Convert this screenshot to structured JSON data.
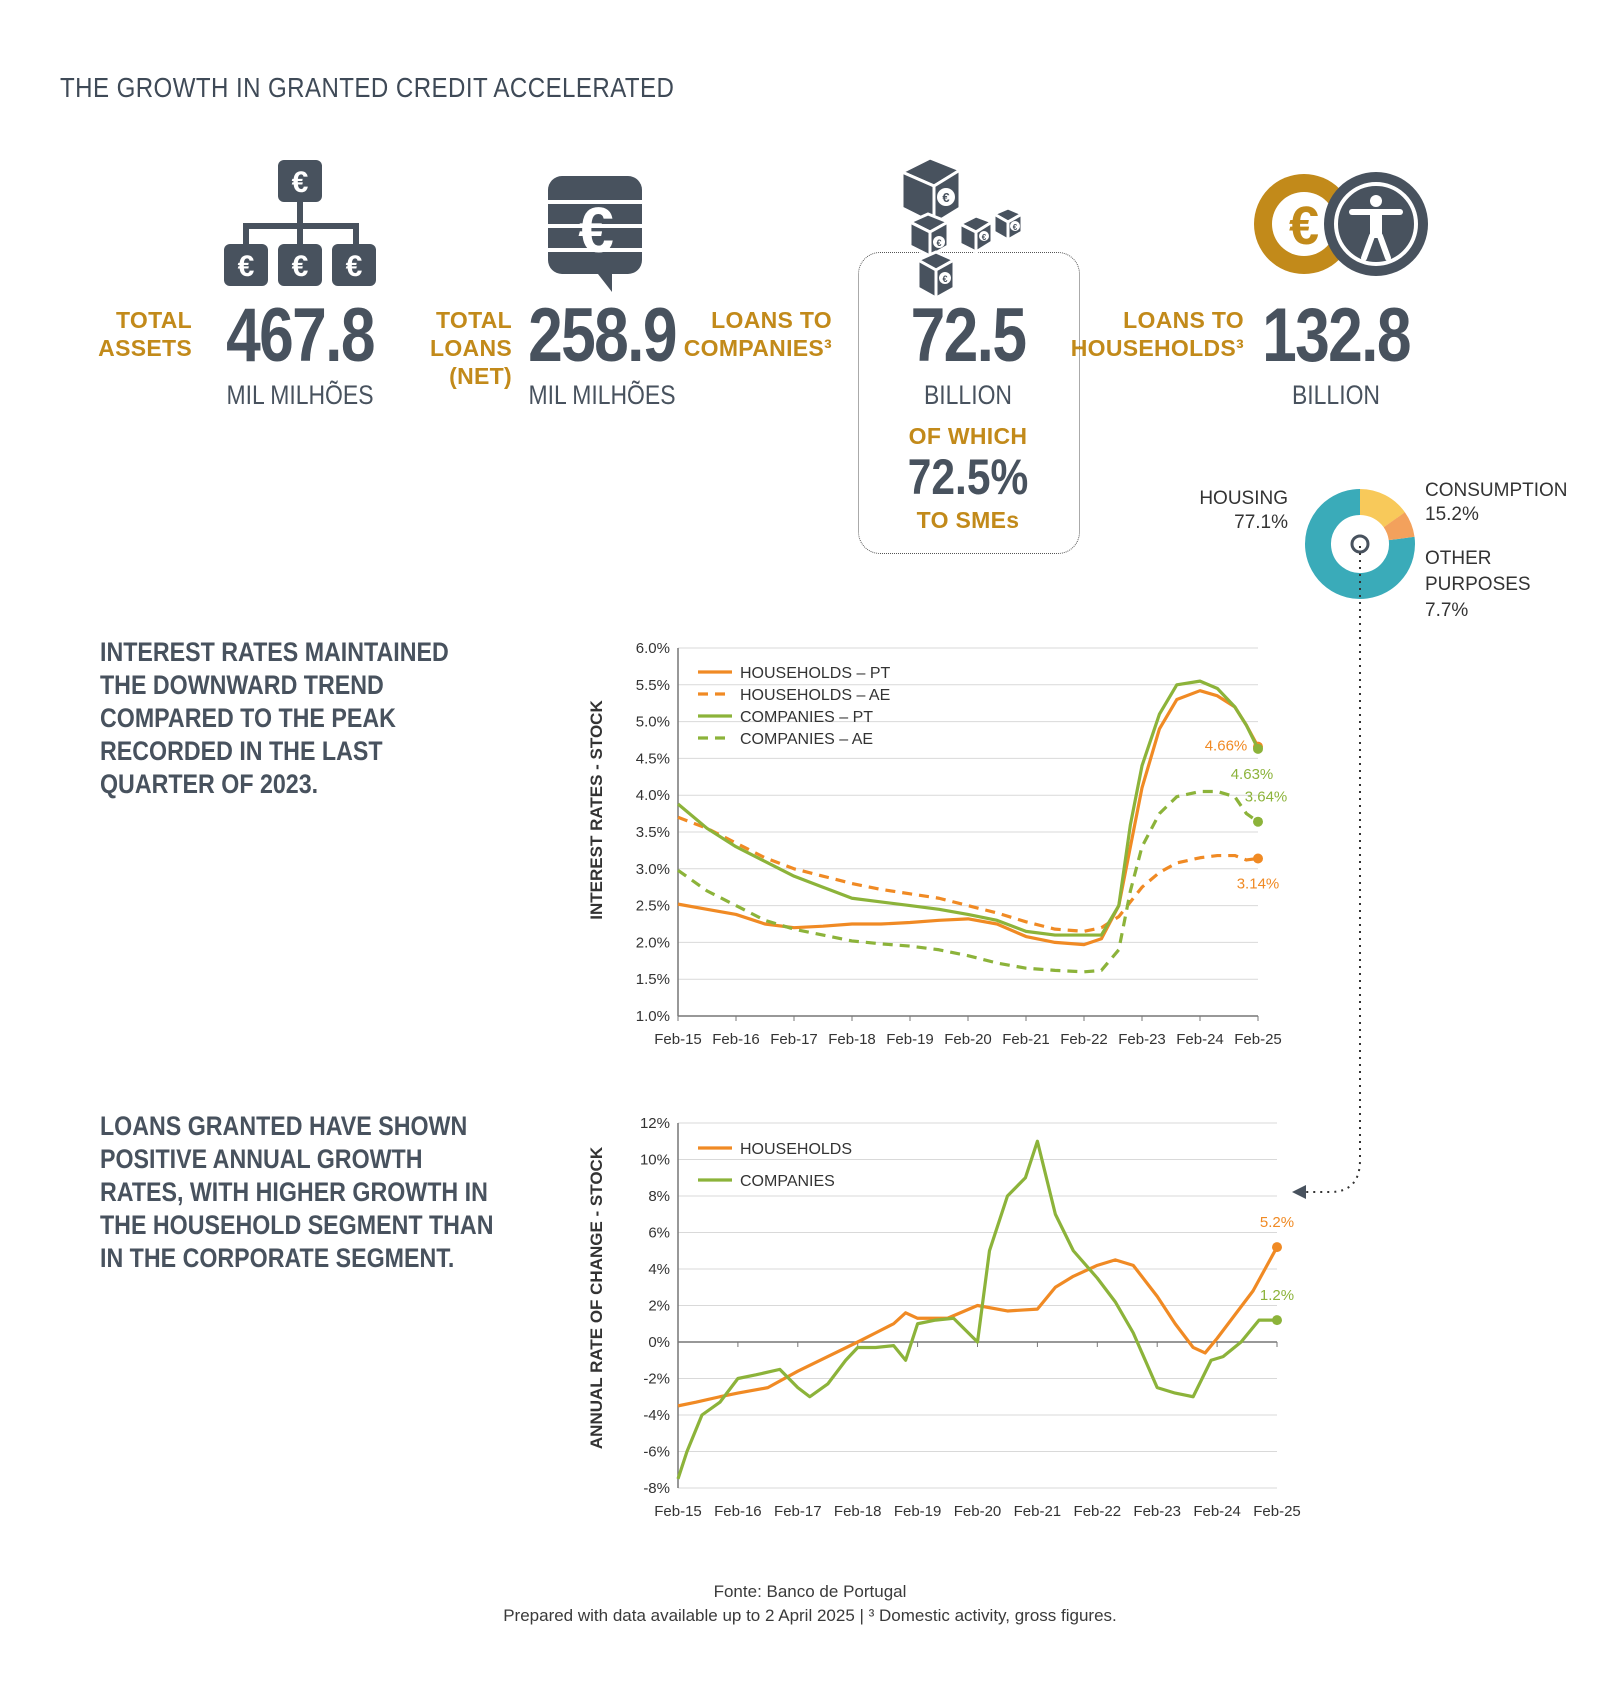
{
  "title": "THE GROWTH IN GRANTED CREDIT ACCELERATED",
  "kpis": [
    {
      "label": [
        "TOTAL",
        "ASSETS"
      ],
      "value": "467.8",
      "unit": "MIL MILHÕES",
      "icon": "euro-hierarchy-icon"
    },
    {
      "label": [
        "TOTAL",
        "LOANS",
        "(NET)"
      ],
      "value": "258.9",
      "unit": "MIL MILHÕES",
      "icon": "euro-chat-bubble-icon"
    },
    {
      "label": [
        "LOANS TO",
        "COMPANIES³"
      ],
      "value": "72.5",
      "unit": "BILLION",
      "icon": "euro-cubes-icon",
      "sub_label": "OF WHICH",
      "sub_value": "72.5%",
      "sub_tail": "TO SMEs"
    },
    {
      "label": [
        "LOANS TO",
        "HOUSEHOLDS³"
      ],
      "value": "132.8",
      "unit": "BILLION",
      "icon": "euro-person-icon"
    }
  ],
  "headings": {
    "rates": "INTEREST RATES MAINTAINED THE DOWNWARD TREND COMPARED TO THE PEAK RECORDED IN THE LAST QUARTER OF 2023.",
    "growth": "LOANS GRANTED HAVE SHOWN POSITIVE ANNUAL GROWTH RATES, WITH HIGHER GROWTH IN THE HOUSEHOLD SEGMENT THAN IN THE CORPORATE SEGMENT."
  },
  "footer": {
    "source": "Fonte: Banco de Portugal",
    "note": "Prepared with data available up to 2 April 2025 |  ³ Domestic activity, gross figures."
  },
  "colors": {
    "orange": "#f08a24",
    "green": "#8cb33a",
    "teal": "#3aabb9",
    "yellow": "#f8c95a",
    "peach": "#f3a15c",
    "gold": "#c28a1a",
    "dark": "#48525e"
  },
  "chart_data": [
    {
      "type": "pie",
      "title": "",
      "slices": [
        {
          "label": "HOUSING",
          "value": 77.1,
          "display": "77.1%"
        },
        {
          "label": "CONSUMPTION",
          "value": 15.2,
          "display": "15.2%"
        },
        {
          "label": "OTHER PURPOSES",
          "value": 7.7,
          "display": "7.7%"
        }
      ]
    },
    {
      "type": "line",
      "title": "",
      "ylabel": "INTEREST RATES - STOCK",
      "xlabel": "",
      "ylim": [
        1.0,
        6.0
      ],
      "yticks": [
        "1.0%",
        "1.5%",
        "2.0%",
        "2.5%",
        "3.0%",
        "3.5%",
        "4.0%",
        "4.5%",
        "5.0%",
        "5.5%",
        "6.0%"
      ],
      "xticks": [
        "Feb-15",
        "Feb-16",
        "Feb-17",
        "Feb-18",
        "Feb-19",
        "Feb-20",
        "Feb-21",
        "Feb-22",
        "Feb-23",
        "Feb-24",
        "Feb-25"
      ],
      "grid": true,
      "legend": "top-left",
      "series": [
        {
          "name": "HOUSEHOLDS – PT",
          "color": "orange",
          "dash": false,
          "x": [
            0,
            0.5,
            1,
            1.5,
            2,
            2.5,
            3,
            3.5,
            4,
            4.5,
            5,
            5.5,
            6,
            6.5,
            7,
            7.3,
            7.6,
            7.8,
            8,
            8.3,
            8.6,
            9,
            9.3,
            9.6,
            9.8,
            10
          ],
          "y": [
            2.52,
            2.45,
            2.38,
            2.25,
            2.2,
            2.22,
            2.25,
            2.25,
            2.27,
            2.3,
            2.32,
            2.25,
            2.08,
            2.0,
            1.97,
            2.05,
            2.5,
            3.3,
            4.1,
            4.9,
            5.3,
            5.42,
            5.35,
            5.2,
            4.95,
            4.66
          ],
          "end_label": "4.66%"
        },
        {
          "name": "HOUSEHOLDS – AE",
          "color": "orange",
          "dash": true,
          "x": [
            0,
            0.5,
            1,
            1.5,
            2,
            2.5,
            3,
            3.5,
            4,
            4.5,
            5,
            5.5,
            6,
            6.5,
            7,
            7.3,
            7.6,
            7.8,
            8,
            8.3,
            8.6,
            9,
            9.3,
            9.6,
            9.8,
            10
          ],
          "y": [
            3.7,
            3.55,
            3.35,
            3.15,
            3.0,
            2.9,
            2.8,
            2.72,
            2.66,
            2.6,
            2.5,
            2.4,
            2.28,
            2.18,
            2.15,
            2.2,
            2.35,
            2.55,
            2.75,
            2.95,
            3.08,
            3.15,
            3.18,
            3.18,
            3.12,
            3.14
          ],
          "end_label": "3.14%"
        },
        {
          "name": "COMPANIES – PT",
          "color": "green",
          "dash": false,
          "x": [
            0,
            0.5,
            1,
            1.5,
            2,
            2.5,
            3,
            3.5,
            4,
            4.5,
            5,
            5.5,
            6,
            6.5,
            7,
            7.3,
            7.6,
            7.8,
            8,
            8.3,
            8.6,
            9,
            9.3,
            9.6,
            9.8,
            10
          ],
          "y": [
            3.88,
            3.55,
            3.3,
            3.1,
            2.9,
            2.75,
            2.6,
            2.55,
            2.5,
            2.45,
            2.38,
            2.3,
            2.15,
            2.1,
            2.1,
            2.1,
            2.5,
            3.6,
            4.4,
            5.1,
            5.5,
            5.55,
            5.45,
            5.2,
            4.95,
            4.63
          ],
          "end_label": "4.63%"
        },
        {
          "name": "COMPANIES – AE",
          "color": "green",
          "dash": true,
          "x": [
            0,
            0.5,
            1,
            1.5,
            2,
            2.5,
            3,
            3.5,
            4,
            4.5,
            5,
            5.5,
            6,
            6.5,
            7,
            7.3,
            7.6,
            7.8,
            8,
            8.3,
            8.6,
            9,
            9.3,
            9.6,
            9.8,
            10
          ],
          "y": [
            2.98,
            2.7,
            2.5,
            2.3,
            2.18,
            2.1,
            2.02,
            1.98,
            1.95,
            1.9,
            1.82,
            1.72,
            1.65,
            1.62,
            1.6,
            1.62,
            1.9,
            2.7,
            3.3,
            3.75,
            3.98,
            4.05,
            4.05,
            3.98,
            3.75,
            3.64
          ],
          "end_label": "3.64%"
        }
      ]
    },
    {
      "type": "line",
      "title": "",
      "ylabel": "ANNUAL RATE OF CHANGE - STOCK",
      "xlabel": "",
      "ylim": [
        -8,
        12
      ],
      "yticks": [
        "-8%",
        "-6%",
        "-4%",
        "-2%",
        "0%",
        "2%",
        "4%",
        "6%",
        "8%",
        "10%",
        "12%"
      ],
      "xticks": [
        "Feb-15",
        "Feb-16",
        "Feb-17",
        "Feb-18",
        "Feb-19",
        "Feb-20",
        "Feb-21",
        "Feb-22",
        "Feb-23",
        "Feb-24",
        "Feb-25"
      ],
      "grid": true,
      "legend": "top-left",
      "series": [
        {
          "name": "HOUSEHOLDS",
          "color": "orange",
          "x": [
            0,
            0.3,
            0.7,
            1,
            1.5,
            2,
            2.5,
            3,
            3.3,
            3.6,
            3.8,
            4,
            4.5,
            5,
            5.5,
            6,
            6.3,
            6.6,
            7,
            7.3,
            7.6,
            8,
            8.3,
            8.6,
            8.8,
            9,
            9.3,
            9.6,
            10
          ],
          "y": [
            -3.5,
            -3.3,
            -3.0,
            -2.8,
            -2.5,
            -1.6,
            -0.8,
            0.0,
            0.5,
            1.0,
            1.6,
            1.3,
            1.3,
            2.0,
            1.7,
            1.8,
            3.0,
            3.6,
            4.2,
            4.5,
            4.2,
            2.5,
            1.0,
            -0.3,
            -0.6,
            0.2,
            1.5,
            2.8,
            5.2
          ],
          "end_label": "5.2%"
        },
        {
          "name": "COMPANIES",
          "color": "green",
          "x": [
            0,
            0.15,
            0.4,
            0.7,
            1,
            1.3,
            1.7,
            2,
            2.2,
            2.5,
            2.8,
            3,
            3.3,
            3.6,
            3.8,
            4,
            4.3,
            4.6,
            5,
            5.2,
            5.5,
            5.8,
            6,
            6.3,
            6.6,
            7,
            7.3,
            7.6,
            8,
            8.3,
            8.6,
            8.9,
            9.1,
            9.4,
            9.7,
            10
          ],
          "y": [
            -7.5,
            -6.0,
            -4.0,
            -3.3,
            -2.0,
            -1.8,
            -1.5,
            -2.5,
            -3.0,
            -2.3,
            -1.0,
            -0.3,
            -0.3,
            -0.2,
            -1.0,
            1.0,
            1.2,
            1.3,
            0.0,
            5.0,
            8.0,
            9.0,
            11.0,
            7.0,
            5.0,
            3.5,
            2.2,
            0.5,
            -2.5,
            -2.8,
            -3.0,
            -1.0,
            -0.8,
            0.0,
            1.2,
            1.2
          ],
          "end_label": "1.2%"
        }
      ]
    }
  ]
}
